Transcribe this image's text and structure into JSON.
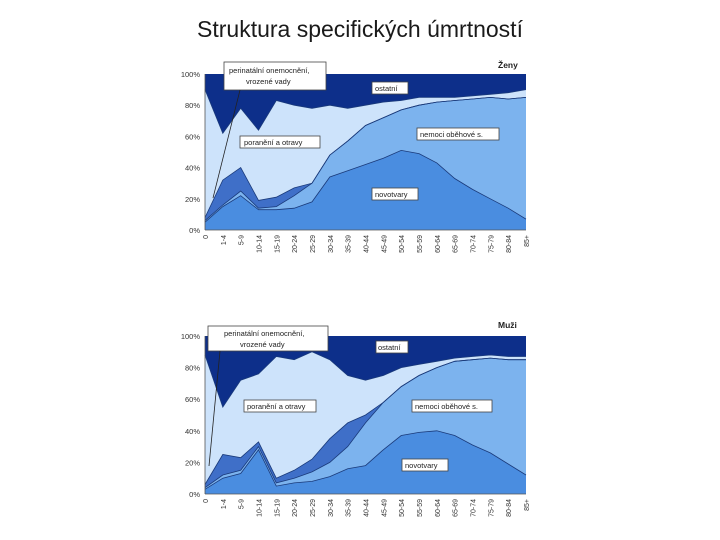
{
  "slide": {
    "title": "Struktura specifických úmrtností"
  },
  "colors": {
    "perinatal": "#0d2f8a",
    "injuries": "#3f6fc8",
    "ostatni": "#cde3fb",
    "cardio": "#7cb3ee",
    "tumors": "#4a8de0",
    "line": "#1a3a7a"
  },
  "chart_data": [
    {
      "type": "area",
      "title": "Ženy",
      "categories": [
        "0",
        "1-4",
        "5-9",
        "10-14",
        "15-19",
        "20-24",
        "25-29",
        "30-34",
        "35-39",
        "40-44",
        "45-49",
        "50-54",
        "55-59",
        "60-64",
        "65-69",
        "70-74",
        "75-79",
        "80-84",
        "85+"
      ],
      "yticks": [
        "0%",
        "20%",
        "40%",
        "60%",
        "80%",
        "100%"
      ],
      "ylim": [
        0,
        100
      ],
      "series": [
        {
          "name": "novotvary",
          "values": [
            5,
            15,
            22,
            13,
            13,
            14,
            18,
            34,
            38,
            42,
            46,
            51,
            49,
            43,
            33,
            26,
            20,
            14,
            7
          ]
        },
        {
          "name": "nemoci oběhové s.",
          "values": [
            6,
            16,
            25,
            14,
            15,
            22,
            30,
            48,
            57,
            67,
            72,
            77,
            80,
            82,
            83,
            84,
            85,
            84,
            85
          ]
        },
        {
          "name": "poranění a otravy",
          "values": [
            8,
            32,
            40,
            19,
            21,
            27,
            30,
            48,
            57,
            67,
            72,
            77,
            80,
            82,
            83,
            84,
            85,
            84,
            85
          ]
        },
        {
          "name": "ostatní",
          "values": [
            90,
            62,
            78,
            64,
            83,
            80,
            78,
            80,
            78,
            80,
            82,
            83,
            85,
            85,
            85,
            86,
            87,
            88,
            90
          ]
        },
        {
          "name": "perinatální onemocnění, vrozené vady",
          "values": [
            100,
            100,
            100,
            100,
            100,
            100,
            100,
            100,
            100,
            100,
            100,
            100,
            100,
            100,
            100,
            100,
            100,
            100,
            100
          ]
        }
      ],
      "annotations": [
        "perinatální onemocnění,",
        "vrozené vady",
        "ostatní",
        "nemoci oběhové s.",
        "poranění a otravy",
        "novotvary"
      ]
    },
    {
      "type": "area",
      "title": "Muži",
      "categories": [
        "0",
        "1-4",
        "5-9",
        "10-14",
        "15-19",
        "20-24",
        "25-29",
        "30-34",
        "35-39",
        "40-44",
        "45-49",
        "50-54",
        "55-59",
        "60-64",
        "65-69",
        "70-74",
        "75-79",
        "80-84",
        "85+"
      ],
      "yticks": [
        "0%",
        "20%",
        "40%",
        "60%",
        "80%",
        "100%"
      ],
      "ylim": [
        0,
        100
      ],
      "series": [
        {
          "name": "novotvary",
          "values": [
            3,
            10,
            13,
            28,
            5,
            7,
            8,
            11,
            16,
            18,
            28,
            37,
            39,
            40,
            37,
            31,
            26,
            19,
            12
          ]
        },
        {
          "name": "nemoci oběhové s.",
          "values": [
            4,
            12,
            15,
            30,
            7,
            10,
            14,
            20,
            30,
            45,
            58,
            68,
            75,
            80,
            84,
            85,
            86,
            85,
            85
          ]
        },
        {
          "name": "poranění a otravy",
          "values": [
            6,
            25,
            23,
            33,
            10,
            15,
            22,
            35,
            45,
            50,
            58,
            68,
            75,
            80,
            84,
            85,
            86,
            85,
            85
          ]
        },
        {
          "name": "ostatní",
          "values": [
            88,
            55,
            72,
            76,
            87,
            85,
            90,
            85,
            75,
            72,
            75,
            80,
            82,
            84,
            86,
            87,
            88,
            87,
            87
          ]
        },
        {
          "name": "perinatální onemocnění, vrozené vady",
          "values": [
            100,
            100,
            100,
            100,
            100,
            100,
            100,
            100,
            100,
            100,
            100,
            100,
            100,
            100,
            100,
            100,
            100,
            100,
            100
          ]
        }
      ],
      "annotations": [
        "perinatální onemocnění,",
        "vrozené vady",
        "ostatní",
        "poranění a otravy",
        "nemoci oběhové s.",
        "novotvary"
      ]
    }
  ]
}
